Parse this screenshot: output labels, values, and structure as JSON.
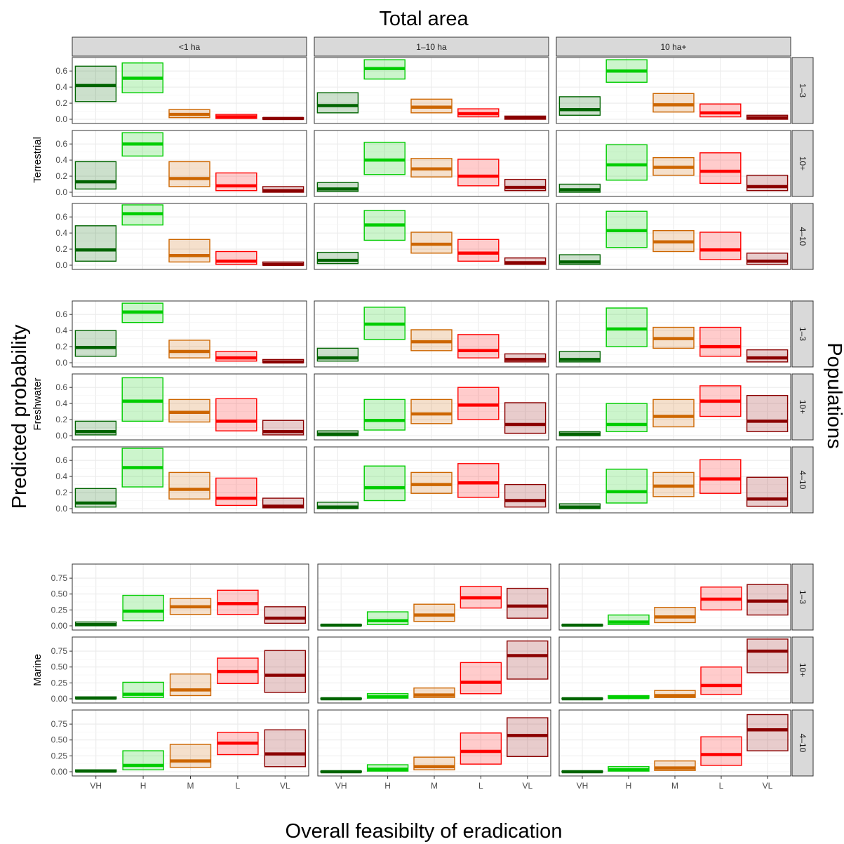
{
  "chart_data": {
    "type": "box",
    "title": "Total area",
    "xlabel": "Overall feasibilty of eradication",
    "ylabel": "Predicted probability",
    "right_label": "Populations",
    "categories": [
      "VH",
      "H",
      "M",
      "L",
      "VL"
    ],
    "colors": {
      "VH": "#006400",
      "H": "#00CD00",
      "M": "#CD6600",
      "L": "#FF0000",
      "VL": "#8B0000"
    },
    "col_facets": [
      "<1 ha",
      "1–10 ha",
      "10 ha+"
    ],
    "row_facets": [
      "1–3",
      "10+",
      "4–10"
    ],
    "habitats": [
      {
        "name": "Terrestrial",
        "ylim": [
          0,
          0.75
        ],
        "yticks": [
          0.0,
          0.2,
          0.4,
          0.6
        ],
        "ytick_labels": [
          "0.0",
          "0.2",
          "0.4",
          "0.6"
        ],
        "panels": [
          [
            [
              [
                0.22,
                0.42,
                0.66
              ],
              [
                0.33,
                0.51,
                0.7
              ],
              [
                0.02,
                0.06,
                0.12
              ],
              [
                0.01,
                0.03,
                0.06
              ],
              [
                0.0,
                0.01,
                0.02
              ]
            ],
            [
              [
                0.08,
                0.17,
                0.33
              ],
              [
                0.5,
                0.63,
                0.74
              ],
              [
                0.08,
                0.15,
                0.25
              ],
              [
                0.03,
                0.07,
                0.13
              ],
              [
                0.0,
                0.02,
                0.04
              ]
            ],
            [
              [
                0.05,
                0.12,
                0.28
              ],
              [
                0.46,
                0.6,
                0.74
              ],
              [
                0.09,
                0.18,
                0.32
              ],
              [
                0.03,
                0.08,
                0.19
              ],
              [
                0.0,
                0.02,
                0.05
              ]
            ]
          ],
          [
            [
              [
                0.04,
                0.13,
                0.38
              ],
              [
                0.45,
                0.6,
                0.74
              ],
              [
                0.07,
                0.17,
                0.38
              ],
              [
                0.02,
                0.08,
                0.24
              ],
              [
                0.0,
                0.02,
                0.07
              ]
            ],
            [
              [
                0.01,
                0.04,
                0.12
              ],
              [
                0.22,
                0.4,
                0.62
              ],
              [
                0.19,
                0.29,
                0.42
              ],
              [
                0.08,
                0.2,
                0.41
              ],
              [
                0.02,
                0.06,
                0.16
              ]
            ],
            [
              [
                0.0,
                0.03,
                0.1
              ],
              [
                0.15,
                0.34,
                0.59
              ],
              [
                0.21,
                0.31,
                0.43
              ],
              [
                0.11,
                0.26,
                0.49
              ],
              [
                0.02,
                0.07,
                0.21
              ]
            ]
          ],
          [
            [
              [
                0.05,
                0.19,
                0.49
              ],
              [
                0.5,
                0.64,
                0.75
              ],
              [
                0.04,
                0.12,
                0.32
              ],
              [
                0.01,
                0.05,
                0.17
              ],
              [
                0.0,
                0.01,
                0.04
              ]
            ],
            [
              [
                0.02,
                0.06,
                0.16
              ],
              [
                0.31,
                0.5,
                0.68
              ],
              [
                0.15,
                0.26,
                0.41
              ],
              [
                0.05,
                0.15,
                0.32
              ],
              [
                0.01,
                0.03,
                0.09
              ]
            ],
            [
              [
                0.01,
                0.04,
                0.13
              ],
              [
                0.22,
                0.43,
                0.67
              ],
              [
                0.17,
                0.29,
                0.43
              ],
              [
                0.07,
                0.19,
                0.41
              ],
              [
                0.01,
                0.05,
                0.15
              ]
            ]
          ]
        ]
      },
      {
        "name": "Freshwater",
        "ylim": [
          0,
          0.75
        ],
        "yticks": [
          0.0,
          0.2,
          0.4,
          0.6
        ],
        "ytick_labels": [
          "0.0",
          "0.2",
          "0.4",
          "0.6"
        ],
        "panels": [
          [
            [
              [
                0.08,
                0.19,
                0.4
              ],
              [
                0.5,
                0.63,
                0.74
              ],
              [
                0.06,
                0.14,
                0.28
              ],
              [
                0.02,
                0.06,
                0.14
              ],
              [
                0.0,
                0.01,
                0.04
              ]
            ],
            [
              [
                0.02,
                0.06,
                0.18
              ],
              [
                0.29,
                0.48,
                0.69
              ],
              [
                0.15,
                0.26,
                0.41
              ],
              [
                0.06,
                0.15,
                0.35
              ],
              [
                0.01,
                0.04,
                0.11
              ]
            ],
            [
              [
                0.01,
                0.04,
                0.14
              ],
              [
                0.2,
                0.42,
                0.68
              ],
              [
                0.18,
                0.3,
                0.44
              ],
              [
                0.08,
                0.2,
                0.44
              ],
              [
                0.01,
                0.06,
                0.16
              ]
            ]
          ],
          [
            [
              [
                0.01,
                0.05,
                0.18
              ],
              [
                0.18,
                0.43,
                0.72
              ],
              [
                0.17,
                0.29,
                0.45
              ],
              [
                0.06,
                0.18,
                0.46
              ],
              [
                0.01,
                0.05,
                0.19
              ]
            ],
            [
              [
                0.0,
                0.02,
                0.06
              ],
              [
                0.07,
                0.19,
                0.45
              ],
              [
                0.15,
                0.27,
                0.45
              ],
              [
                0.2,
                0.38,
                0.6
              ],
              [
                0.03,
                0.14,
                0.41
              ]
            ],
            [
              [
                0.0,
                0.02,
                0.05
              ],
              [
                0.05,
                0.14,
                0.4
              ],
              [
                0.11,
                0.24,
                0.45
              ],
              [
                0.24,
                0.43,
                0.62
              ],
              [
                0.05,
                0.18,
                0.5
              ]
            ]
          ],
          [
            [
              [
                0.02,
                0.07,
                0.25
              ],
              [
                0.27,
                0.51,
                0.75
              ],
              [
                0.12,
                0.24,
                0.45
              ],
              [
                0.04,
                0.13,
                0.38
              ],
              [
                0.01,
                0.03,
                0.13
              ]
            ],
            [
              [
                0.0,
                0.02,
                0.08
              ],
              [
                0.1,
                0.26,
                0.53
              ],
              [
                0.19,
                0.3,
                0.45
              ],
              [
                0.14,
                0.32,
                0.56
              ],
              [
                0.02,
                0.1,
                0.3
              ]
            ],
            [
              [
                0.0,
                0.02,
                0.06
              ],
              [
                0.07,
                0.21,
                0.49
              ],
              [
                0.15,
                0.28,
                0.45
              ],
              [
                0.19,
                0.37,
                0.61
              ],
              [
                0.03,
                0.12,
                0.39
              ]
            ]
          ]
        ]
      },
      {
        "name": "Marine",
        "ylim": [
          0,
          0.95
        ],
        "yticks": [
          0.0,
          0.25,
          0.5,
          0.75
        ],
        "ytick_labels": [
          "0.00",
          "0.25",
          "0.50",
          "0.75"
        ],
        "panels": [
          [
            [
              [
                0.0,
                0.02,
                0.06
              ],
              [
                0.08,
                0.23,
                0.48
              ],
              [
                0.18,
                0.3,
                0.43
              ],
              [
                0.18,
                0.35,
                0.56
              ],
              [
                0.04,
                0.12,
                0.3
              ]
            ],
            [
              [
                0.0,
                0.01,
                0.02
              ],
              [
                0.02,
                0.08,
                0.22
              ],
              [
                0.07,
                0.17,
                0.34
              ],
              [
                0.28,
                0.44,
                0.62
              ],
              [
                0.12,
                0.31,
                0.59
              ]
            ],
            [
              [
                0.0,
                0.01,
                0.02
              ],
              [
                0.02,
                0.06,
                0.17
              ],
              [
                0.05,
                0.14,
                0.29
              ],
              [
                0.25,
                0.42,
                0.61
              ],
              [
                0.17,
                0.39,
                0.65
              ]
            ]
          ],
          [
            [
              [
                0.0,
                0.01,
                0.03
              ],
              [
                0.02,
                0.07,
                0.26
              ],
              [
                0.05,
                0.14,
                0.39
              ],
              [
                0.24,
                0.43,
                0.64
              ],
              [
                0.1,
                0.37,
                0.76
              ]
            ],
            [
              [
                0.0,
                0.0,
                0.01
              ],
              [
                0.01,
                0.03,
                0.08
              ],
              [
                0.02,
                0.06,
                0.17
              ],
              [
                0.08,
                0.26,
                0.57
              ],
              [
                0.31,
                0.68,
                0.91
              ]
            ],
            [
              [
                0.0,
                0.0,
                0.01
              ],
              [
                0.01,
                0.02,
                0.05
              ],
              [
                0.02,
                0.05,
                0.13
              ],
              [
                0.07,
                0.21,
                0.5
              ],
              [
                0.41,
                0.75,
                0.94
              ]
            ]
          ],
          [
            [
              [
                0.0,
                0.01,
                0.03
              ],
              [
                0.03,
                0.1,
                0.33
              ],
              [
                0.07,
                0.17,
                0.43
              ],
              [
                0.27,
                0.45,
                0.62
              ],
              [
                0.08,
                0.28,
                0.66
              ]
            ],
            [
              [
                0.0,
                0.0,
                0.01
              ],
              [
                0.01,
                0.04,
                0.11
              ],
              [
                0.03,
                0.08,
                0.23
              ],
              [
                0.12,
                0.32,
                0.61
              ],
              [
                0.24,
                0.57,
                0.85
              ]
            ],
            [
              [
                0.0,
                0.0,
                0.01
              ],
              [
                0.01,
                0.03,
                0.08
              ],
              [
                0.02,
                0.06,
                0.17
              ],
              [
                0.1,
                0.27,
                0.55
              ],
              [
                0.33,
                0.66,
                0.9
              ]
            ]
          ]
        ]
      }
    ]
  }
}
